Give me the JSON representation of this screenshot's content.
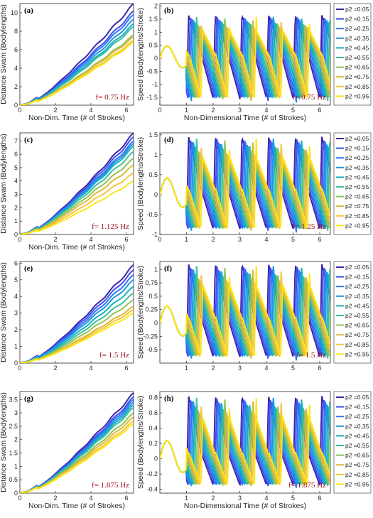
{
  "colors": [
    "#3e26a8",
    "#3e4ff0",
    "#2f76fa",
    "#1f96e0",
    "#14b1c2",
    "#3ec09a",
    "#8ec45a",
    "#dcb93a",
    "#f6c537",
    "#f9e717"
  ],
  "legend_labels": [
    "p2 =0.05",
    "p2 =0.15",
    "p2 =0.25",
    "p2 =0.35",
    "p2 =0.45",
    "p2 =0.55",
    "p2 =0.65",
    "p2 =0.75",
    "p2 =0.85",
    "p2 =0.95"
  ],
  "chart_data": [
    {
      "id": "a",
      "type": "line",
      "panel_label": "(a)",
      "freq_label": "f= 0.75 Hz",
      "xlabel": "Non-Dim. Time (# of Strokes)",
      "ylabel": "Distance Swam (Bodylengths)",
      "xlim": [
        0,
        6.4
      ],
      "ylim": [
        0,
        11
      ],
      "xticks": [
        0,
        2,
        4,
        6
      ],
      "yticks": [
        0,
        2,
        4,
        6,
        8,
        10
      ],
      "final_values": [
        11.0,
        10.2,
        9.8,
        9.3,
        8.8,
        8.5,
        7.6,
        7.4,
        7.0,
        6.8
      ]
    },
    {
      "id": "b",
      "type": "line",
      "panel_label": "(b)",
      "freq_label": "f= 0.75 Hz",
      "xlabel": "Non-Dimensional Time (# of Strokes)",
      "ylabel": "Speed (Bodylengths/Stroke)",
      "xlim": [
        0,
        6.4
      ],
      "ylim": [
        -1.8,
        2.1
      ],
      "xticks": [
        0,
        1,
        2,
        3,
        4,
        5,
        6
      ],
      "yticks": [
        -1.5,
        -1,
        -0.5,
        0,
        0.5,
        1,
        1.5,
        2
      ],
      "legend": true,
      "peak": 1.65,
      "trough": -1.7
    },
    {
      "id": "c",
      "type": "line",
      "panel_label": "(c)",
      "freq_label": "f= 1.125 Hz",
      "xlabel": "Non-Dim. Time (# of Strokes)",
      "ylabel": "Distance Swam (Bodylengths)",
      "xlim": [
        0,
        6.4
      ],
      "ylim": [
        0,
        7.6
      ],
      "xticks": [
        0,
        2,
        4,
        6
      ],
      "yticks": [
        0,
        1,
        2,
        3,
        4,
        5,
        6,
        7
      ],
      "final_values": [
        7.6,
        7.3,
        7.0,
        6.8,
        6.6,
        6.2,
        5.7,
        5.2,
        4.6,
        4.0
      ]
    },
    {
      "id": "d",
      "type": "line",
      "panel_label": "(d)",
      "freq_label": "f= 1.25 Hz",
      "xlabel": "",
      "ylabel": "Speed (Bodylengths/Stroke)",
      "xlim": [
        0,
        6.4
      ],
      "ylim": [
        -1.0,
        1.55
      ],
      "xticks": [
        0,
        1,
        2,
        3,
        4,
        5,
        6
      ],
      "yticks": [
        -1,
        -0.5,
        0,
        0.5,
        1,
        1.5
      ],
      "legend": true,
      "peak": 1.45,
      "trough": -0.95
    },
    {
      "id": "e",
      "type": "line",
      "panel_label": "(e)",
      "freq_label": "f= 1.5 Hz",
      "xlabel": "",
      "ylabel": "Distance Swam (Bodylengths)",
      "xlim": [
        0,
        6.4
      ],
      "ylim": [
        0,
        6.1
      ],
      "xticks": [
        0,
        2,
        4,
        6
      ],
      "yticks": [
        0,
        1,
        2,
        3,
        4,
        5,
        6
      ],
      "final_values": [
        5.9,
        5.6,
        5.3,
        5.0,
        4.6,
        4.2,
        3.8,
        3.4,
        3.2,
        3.0
      ]
    },
    {
      "id": "f",
      "type": "line",
      "panel_label": "(f)",
      "freq_label": "f= 1.5 Hz",
      "xlabel": "",
      "ylabel": "Speed (Bodylengths/Stroke)",
      "xlim": [
        0,
        6.4
      ],
      "ylim": [
        -0.75,
        1.15
      ],
      "xticks": [
        1,
        2,
        3,
        4,
        5,
        6
      ],
      "yticks": [
        -0.5,
        -0.25,
        0,
        0.25,
        0.5,
        0.75,
        1
      ],
      "legend": true,
      "peak": 1.1,
      "trough": -0.7
    },
    {
      "id": "g",
      "type": "line",
      "panel_label": "(g)",
      "freq_label": "f= 1.875 Hz",
      "xlabel": "Non-Dim. Time (# of Strokes)",
      "ylabel": "Distance Swam (Bodylengths)",
      "xlim": [
        0,
        6.4
      ],
      "ylim": [
        0,
        3.8
      ],
      "xticks": [
        0,
        2,
        4,
        6
      ],
      "yticks": [
        0,
        0.5,
        1,
        1.5,
        2,
        2.5,
        3,
        3.5
      ],
      "final_values": [
        3.75,
        3.6,
        3.5,
        3.4,
        3.3,
        3.2,
        3.0,
        2.85,
        2.7,
        2.6
      ]
    },
    {
      "id": "h",
      "type": "line",
      "panel_label": "(h)",
      "freq_label": "f= 1.875 Hz",
      "xlabel": "Non-Dimensional Time (# of Strokes)",
      "ylabel": "Speed (Bodylengths/Stroke)",
      "xlim": [
        0,
        6.4
      ],
      "ylim": [
        -0.45,
        0.88
      ],
      "xticks": [
        1,
        2,
        3,
        4,
        5,
        6
      ],
      "yticks": [
        -0.4,
        -0.2,
        0,
        0.2,
        0.4,
        0.6,
        0.8
      ],
      "legend": true,
      "peak": 0.82,
      "trough": -0.38
    }
  ]
}
